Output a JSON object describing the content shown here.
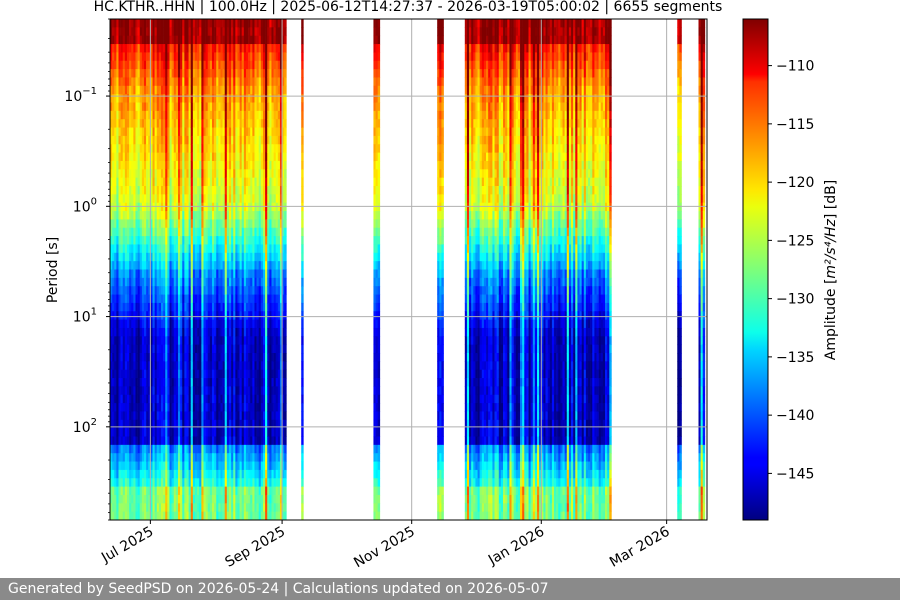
{
  "chart_data": {
    "type": "heatmap",
    "title": "HC.KTHR..HHN | 100.0Hz | 2025-06-12T14:27:37 - 2026-03-19T05:00:02 | 6655 segments",
    "ylabel": "Period [s]",
    "yscale": "log",
    "y_ticks": [
      {
        "value": 0.1,
        "base": "10",
        "exp": "−1"
      },
      {
        "value": 1,
        "base": "10",
        "exp": "0"
      },
      {
        "value": 10,
        "base": "10",
        "exp": "1"
      },
      {
        "value": 100,
        "base": "10",
        "exp": "2"
      }
    ],
    "x_ticks": [
      {
        "value": "2025-07-01",
        "label": "Jul 2025"
      },
      {
        "value": "2025-09-01",
        "label": "Sep 2025"
      },
      {
        "value": "2025-11-01",
        "label": "Nov 2025"
      },
      {
        "value": "2026-01-01",
        "label": "Jan 2026"
      },
      {
        "value": "2026-03-01",
        "label": "Mar 2026"
      }
    ],
    "xlim": [
      "2025-06-12",
      "2026-03-20"
    ],
    "ylim": [
      0.02,
      700
    ],
    "grid": true,
    "colorbar": {
      "label_plain": "Amplitude [",
      "label_math": "m²/s⁴/Hz",
      "label_unit": "] [dB]",
      "range": [
        -149,
        -106
      ],
      "ticks": [
        -110,
        -115,
        -120,
        -125,
        -130,
        -135,
        -140,
        -145
      ],
      "colormap": "jet"
    },
    "data_periods": [
      {
        "start": "2025-06-12",
        "end": "2025-09-03"
      },
      {
        "start": "2025-09-10",
        "end": "2025-09-11"
      },
      {
        "start": "2025-10-14",
        "end": "2025-10-17"
      },
      {
        "start": "2025-11-13",
        "end": "2025-11-16"
      },
      {
        "start": "2025-11-26",
        "end": "2026-02-03"
      },
      {
        "start": "2026-03-06",
        "end": "2026-03-08"
      },
      {
        "start": "2026-03-16",
        "end": "2026-03-19"
      }
    ]
  },
  "footer": {
    "text": "Generated by SeedPSD on 2026-05-24 | Calculations updated on 2026-05-07"
  }
}
